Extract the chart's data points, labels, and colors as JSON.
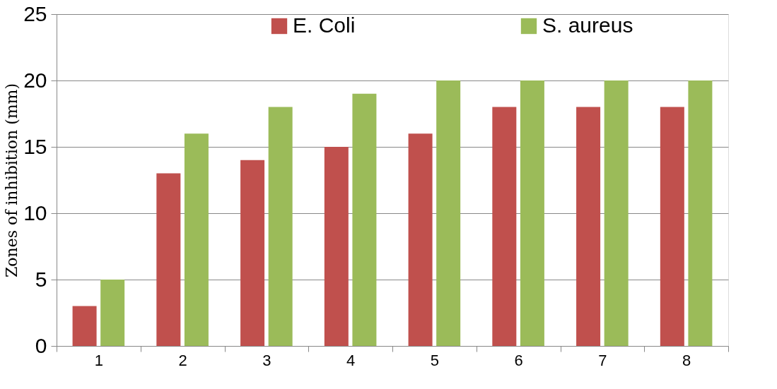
{
  "chart_data": {
    "type": "bar",
    "ylabel": "Zones of inhibition (mm)",
    "categories": [
      "1",
      "2",
      "3",
      "4",
      "5",
      "6",
      "7",
      "8"
    ],
    "series": [
      {
        "name": "E. Coli",
        "color": "#c0504d",
        "values": [
          3,
          13,
          14,
          15,
          16,
          18,
          18,
          18
        ]
      },
      {
        "name": "S. aureus",
        "color": "#9bbb59",
        "values": [
          5,
          16,
          18,
          19,
          20,
          20,
          20,
          20
        ]
      }
    ],
    "ylim": [
      0,
      25
    ],
    "yticks": [
      0,
      5,
      10,
      15,
      20,
      25
    ],
    "grid": "y",
    "legend": "top"
  }
}
